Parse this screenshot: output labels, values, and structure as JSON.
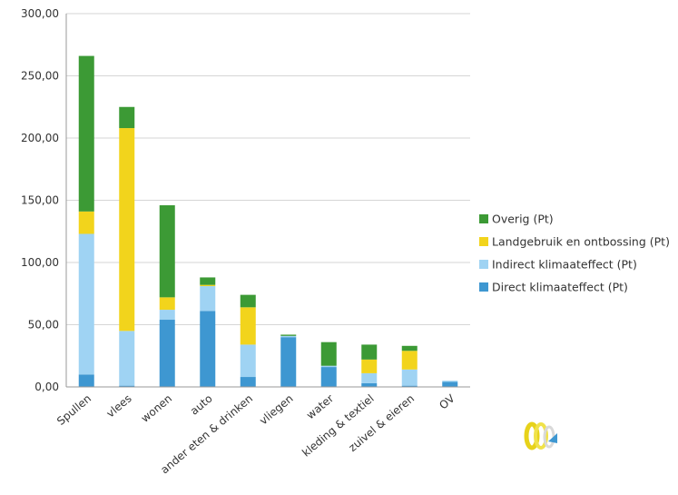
{
  "chart_data": {
    "type": "bar",
    "stacked": true,
    "categories": [
      "Spullen",
      "vlees",
      "wonen",
      "auto",
      "ander eten & drinken",
      "vliegen",
      "water",
      "kleding & textiel",
      "zuivel & eieren",
      "OV"
    ],
    "series": [
      {
        "name": "Direct klimaateffect (Pt)",
        "color": "#3e97d1",
        "values": [
          10,
          1,
          54,
          61,
          8,
          40,
          16,
          3,
          1,
          4
        ]
      },
      {
        "name": "Indirect klimaateffect (Pt)",
        "color": "#9fd3f3",
        "values": [
          113,
          44,
          8,
          20,
          26,
          1,
          1,
          8,
          13,
          1
        ]
      },
      {
        "name": "Landgebruik en ontbossing (Pt)",
        "color": "#f2d41c",
        "values": [
          18,
          163,
          10,
          1,
          30,
          0,
          0,
          11,
          15,
          0
        ]
      },
      {
        "name": "Overig (Pt)",
        "color": "#3c9a35",
        "values": [
          125,
          17,
          74,
          6,
          10,
          1,
          19,
          12,
          4,
          0
        ]
      }
    ],
    "legend_order": [
      "Overig (Pt)",
      "Landgebruik en ontbossing (Pt)",
      "Indirect klimaateffect (Pt)",
      "Direct klimaateffect (Pt)"
    ],
    "y_ticks": [
      "0,00",
      "50,00",
      "100,00",
      "150,00",
      "200,00",
      "250,00",
      "300,00"
    ],
    "ylim": [
      0,
      300
    ],
    "grid": true,
    "legend_position": "right"
  },
  "logo": {
    "name": "logo-icon"
  }
}
